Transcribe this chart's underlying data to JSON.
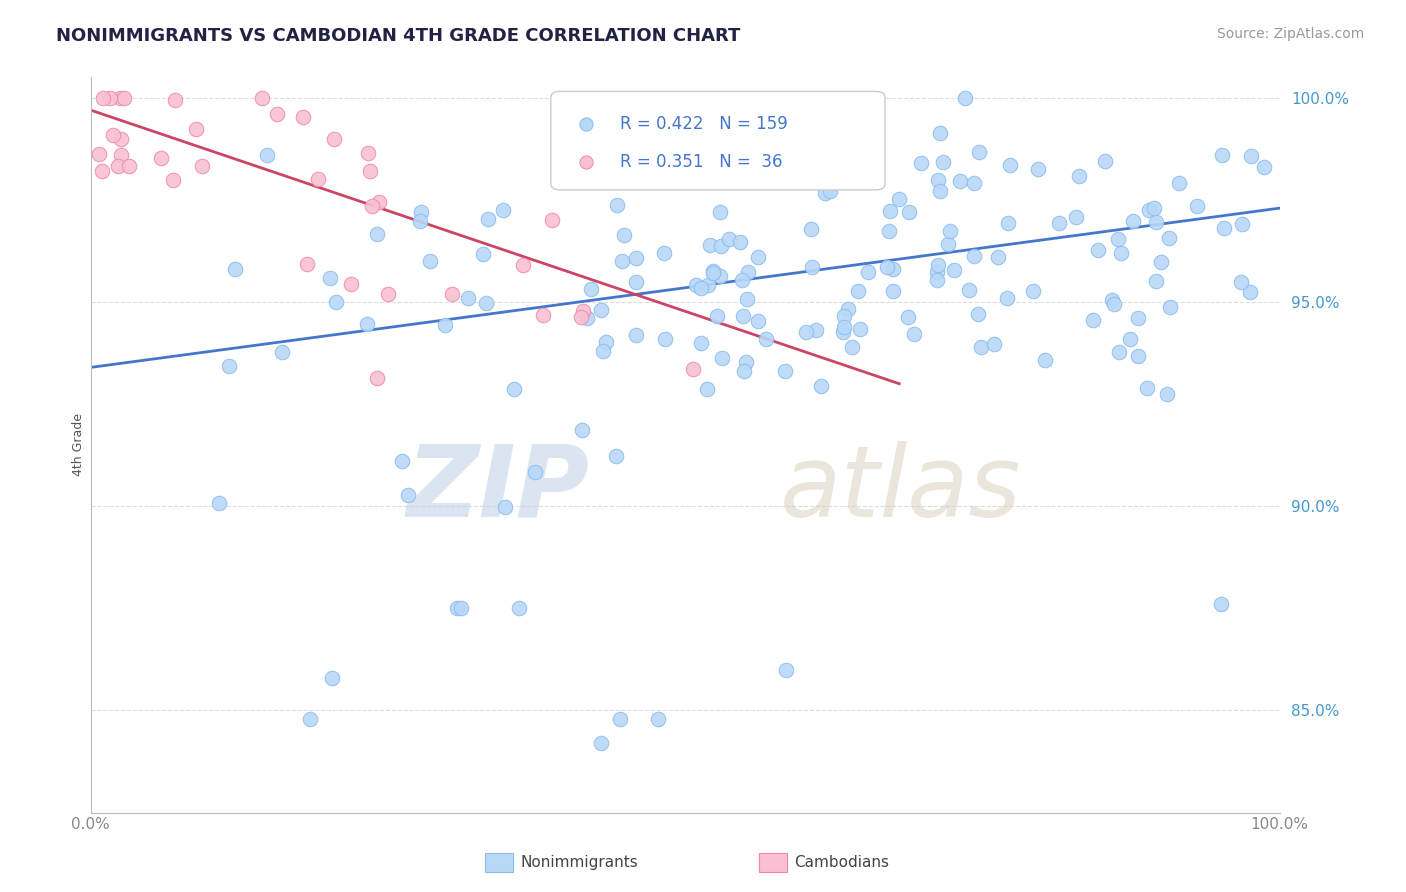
{
  "title": "NONIMMIGRANTS VS CAMBODIAN 4TH GRADE CORRELATION CHART",
  "source_text": "Source: ZipAtlas.com",
  "ylabel": "4th Grade",
  "watermark_zip": "ZIP",
  "watermark_atlas": "atlas",
  "xlim": [
    0.0,
    1.0
  ],
  "ylim": [
    0.825,
    1.005
  ],
  "x_tick_labels": [
    "0.0%",
    "100.0%"
  ],
  "y_tick_right": [
    0.85,
    0.9,
    0.95,
    1.0
  ],
  "y_tick_right_labels": [
    "85.0%",
    "90.0%",
    "95.0%",
    "100.0%"
  ],
  "blue_color": "#b8d8f8",
  "blue_edge_color": "#88bbee",
  "pink_color": "#f8c0d0",
  "pink_edge_color": "#ee88aa",
  "blue_line_color": "#4477cc",
  "pink_line_color": "#cc4466",
  "blue_R": 0.422,
  "blue_N": 159,
  "pink_R": 0.351,
  "pink_N": 36,
  "title_color": "#222244",
  "axis_label_color": "#555555",
  "tick_color_right": "#4499cc",
  "grid_color": "#dddddd",
  "background_color": "#ffffff",
  "title_fontsize": 13,
  "source_fontsize": 10,
  "legend_fontsize": 12,
  "ylabel_fontsize": 9,
  "marker_size": 110,
  "blue_line_x0": 0.0,
  "blue_line_y0": 0.934,
  "blue_line_x1": 1.0,
  "blue_line_y1": 0.973,
  "pink_line_x0": 0.0,
  "pink_line_y0": 0.997,
  "pink_line_x1": 0.68,
  "pink_line_y1": 0.93
}
